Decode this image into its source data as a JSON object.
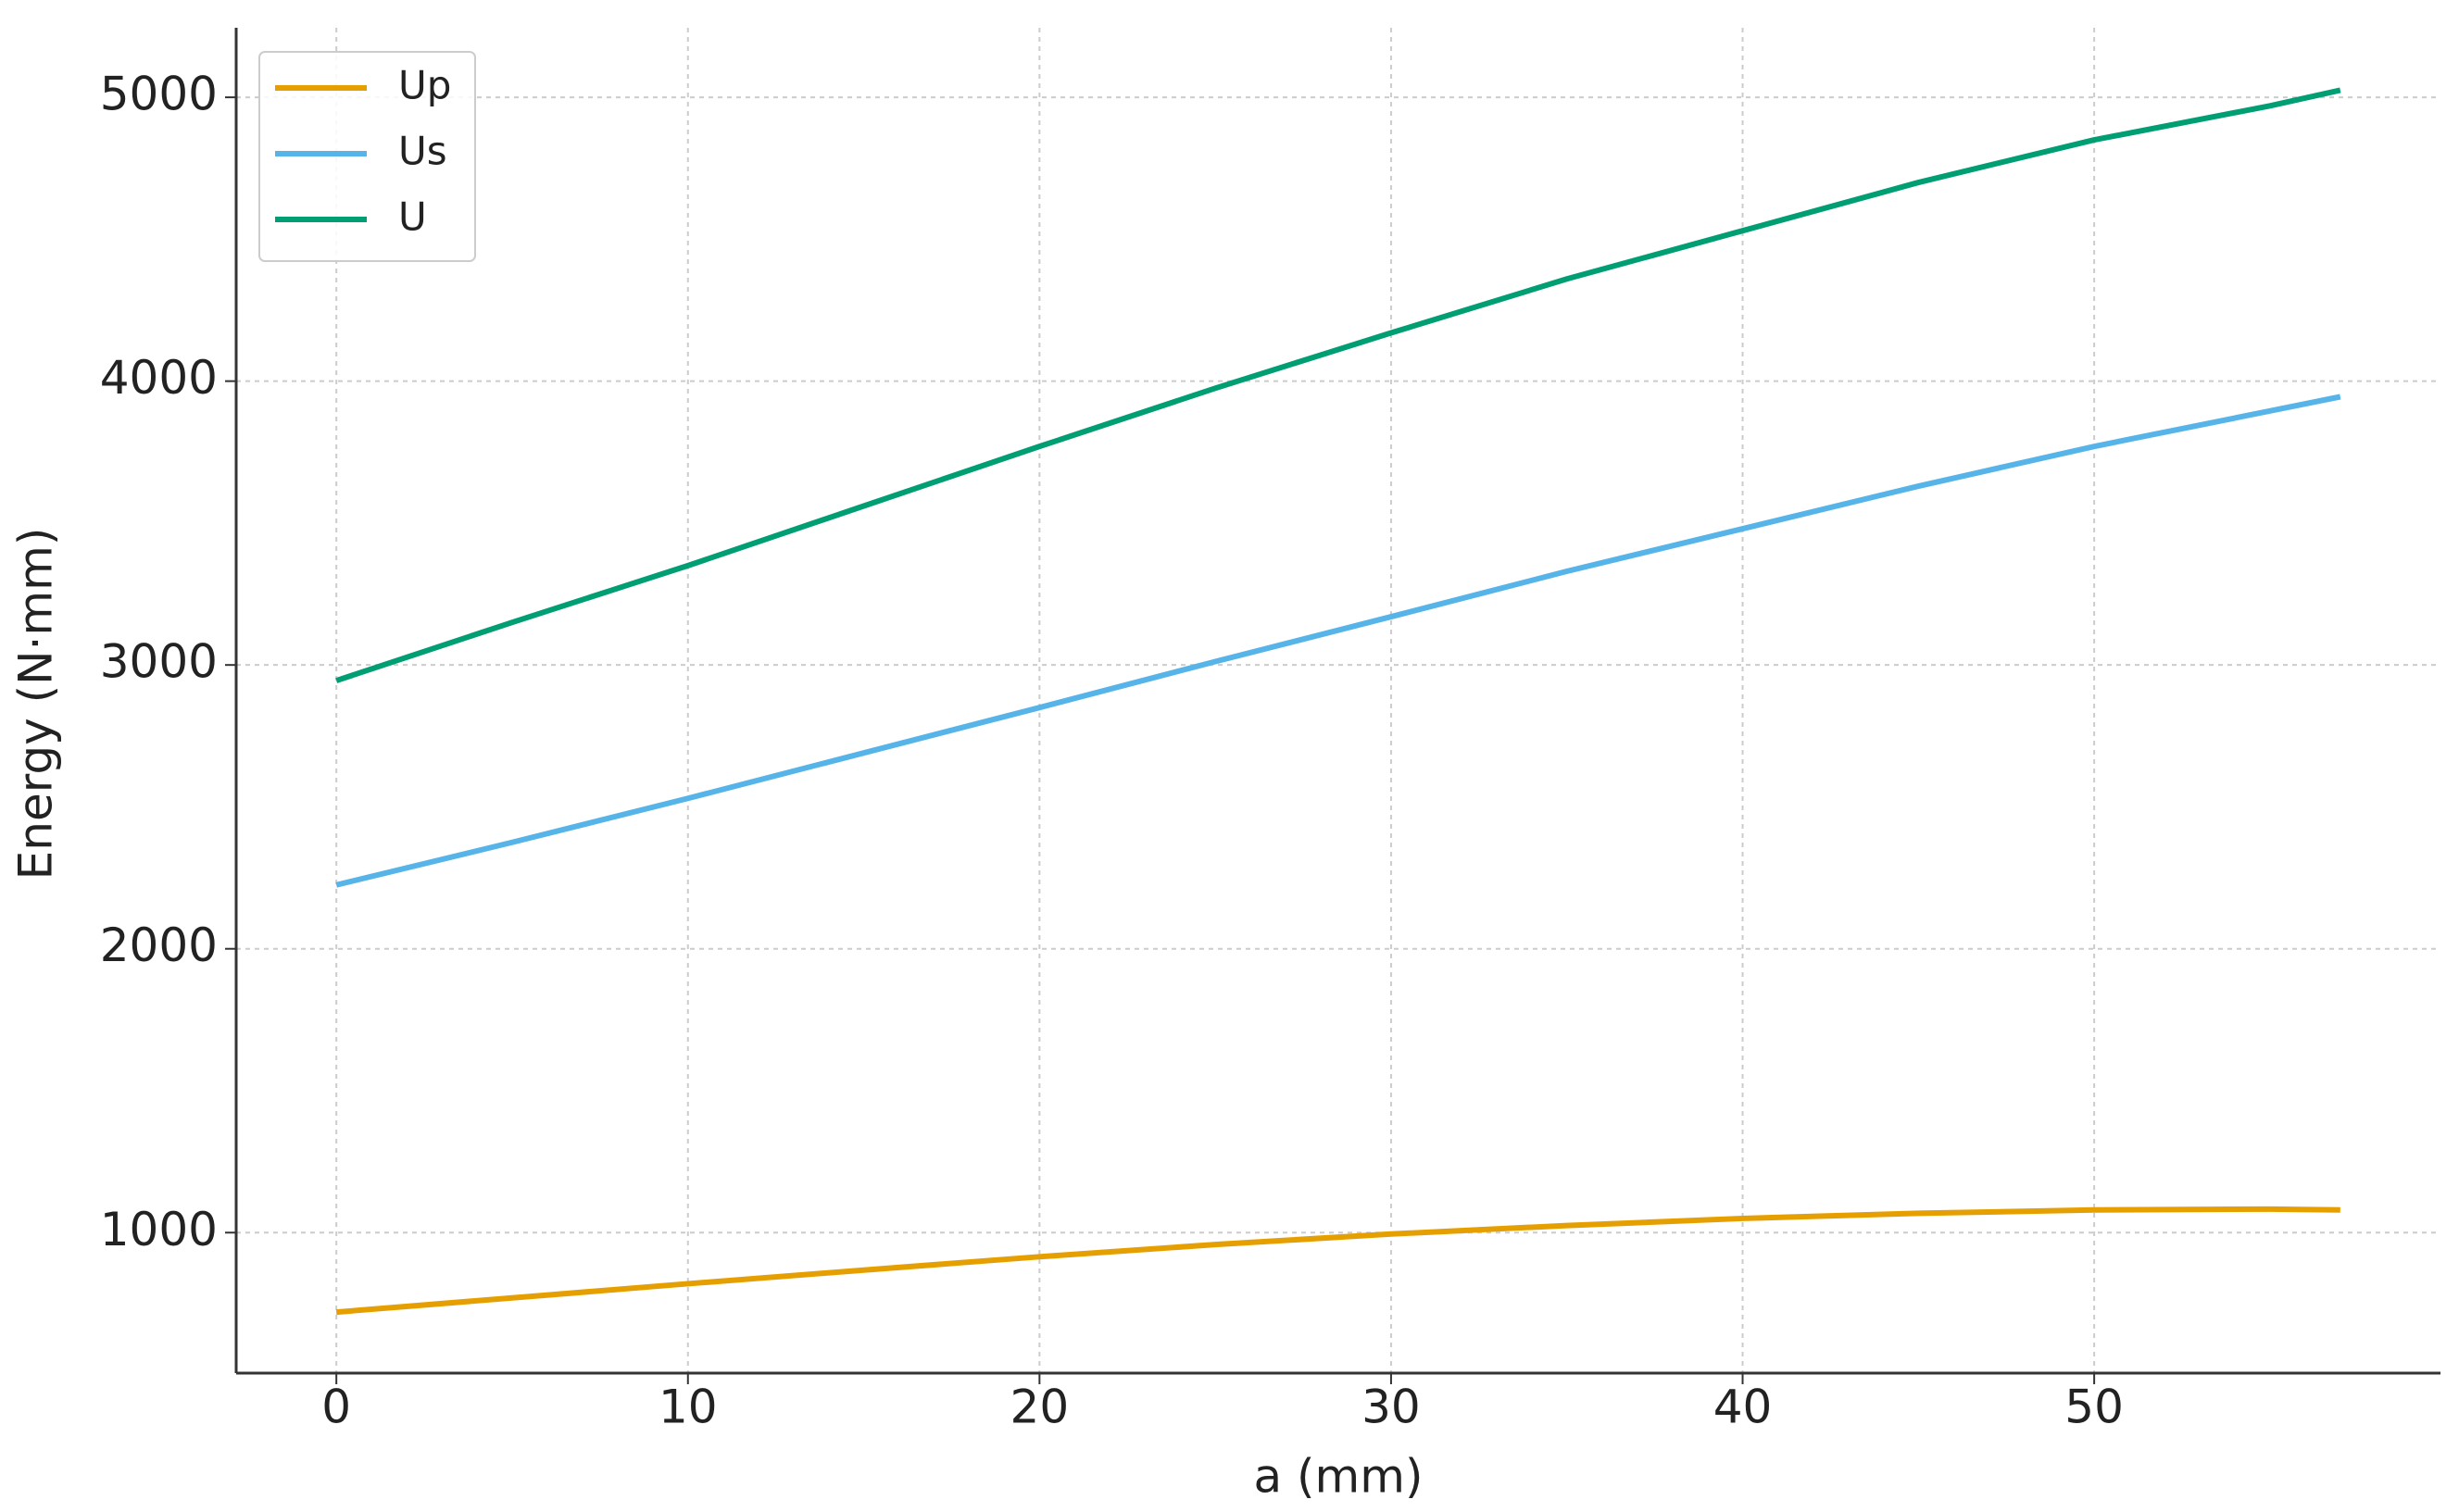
{
  "chart_data": {
    "type": "line",
    "x_label": "a (mm)",
    "y_label": "Energy (N·mm)",
    "x": [
      0,
      5,
      10,
      15,
      20,
      25,
      30,
      35,
      40,
      45,
      50,
      55,
      57
    ],
    "series": [
      {
        "name": "Up",
        "color": "#e69f00",
        "values": [
          720,
          770,
          820,
          868,
          915,
          958,
          995,
          1025,
          1050,
          1068,
          1080,
          1083,
          1080
        ]
      },
      {
        "name": "Us",
        "color": "#56b4e9",
        "values": [
          2225,
          2375,
          2530,
          2690,
          2850,
          3012,
          3170,
          3330,
          3480,
          3630,
          3770,
          3895,
          3945
        ]
      },
      {
        "name": "U",
        "color": "#009e73",
        "values": [
          2945,
          3150,
          3350,
          3560,
          3770,
          3975,
          4170,
          4360,
          4530,
          4700,
          4850,
          4970,
          5025
        ]
      }
    ],
    "xlim": [
      -2.85,
      59.85
    ],
    "ylim": [
      505,
      5245
    ],
    "xticks": [
      0,
      10,
      20,
      30,
      40,
      50
    ],
    "yticks": [
      1000,
      2000,
      3000,
      4000,
      5000
    ],
    "grid": true,
    "legend": "upper-left"
  }
}
